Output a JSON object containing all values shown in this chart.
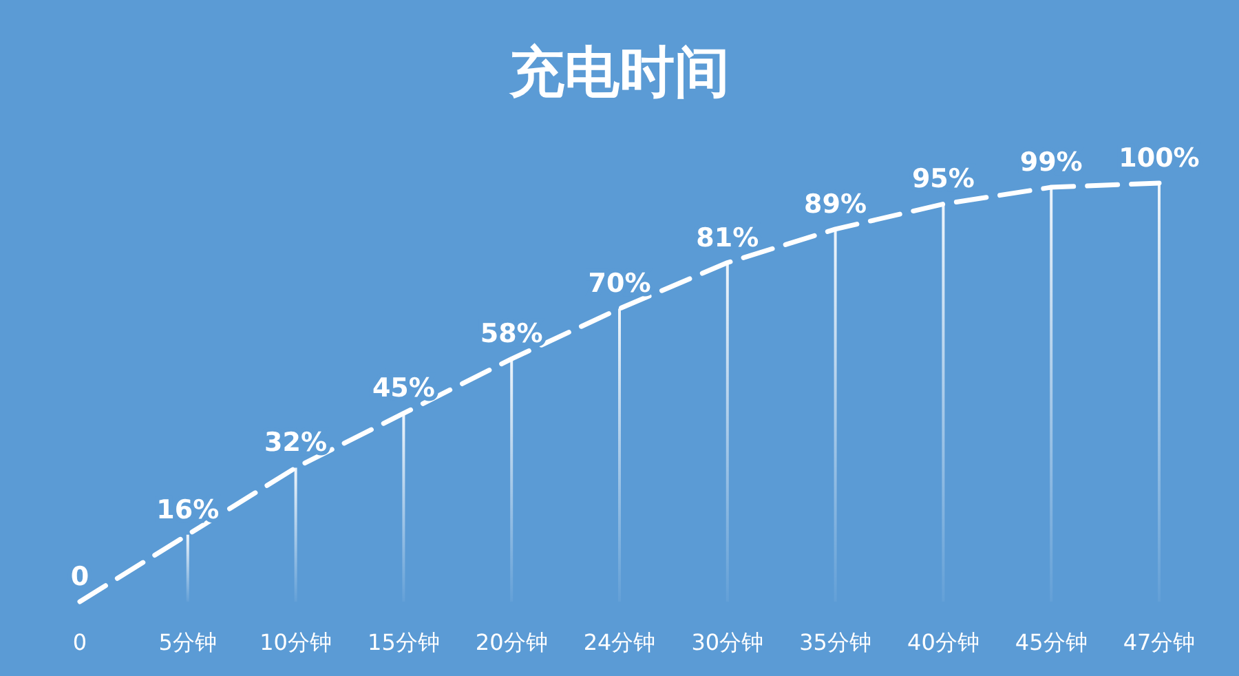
{
  "chart_data": {
    "type": "line",
    "title": "充电时间",
    "categories": [
      "0",
      "5分钟",
      "10分钟",
      "15分钟",
      "20分钟",
      "24分钟",
      "30分钟",
      "35分钟",
      "40分钟",
      "45分钟",
      "47分钟"
    ],
    "series": [
      {
        "color": "#ffffff",
        "values": [
          0,
          16,
          32,
          45,
          58,
          70,
          81,
          89,
          95,
          99,
          100
        ],
        "value_labels": [
          "0",
          "16%",
          "32%",
          "45%",
          "58%",
          "70%",
          "81%",
          "89%",
          "95%",
          "99%",
          "100%"
        ]
      },
      {
        "type": "bar",
        "color": "#ffffff",
        "values": [
          0,
          16,
          32,
          45,
          58,
          70,
          81,
          89,
          95,
          99,
          100
        ]
      }
    ],
    "line_style": "dashed",
    "marker": "none",
    "grid": false,
    "tick_labels": "x"
  }
}
